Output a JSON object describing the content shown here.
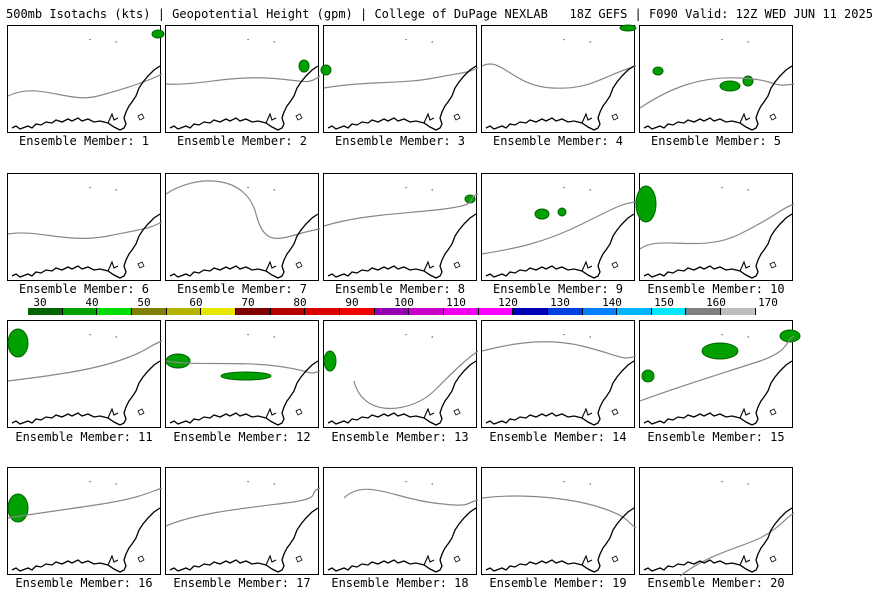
{
  "header": {
    "title": "500mb Isotachs (kts) | Geopotential Height (gpm) | College of DuPage NEXLAB   18Z GEFS | F090 Valid: 12Z WED JUN 11 2025"
  },
  "members": [
    {
      "label": "Ensemble Member: 1"
    },
    {
      "label": "Ensemble Member: 2"
    },
    {
      "label": "Ensemble Member: 3"
    },
    {
      "label": "Ensemble Member: 4"
    },
    {
      "label": "Ensemble Member: 5"
    },
    {
      "label": "Ensemble Member: 6"
    },
    {
      "label": "Ensemble Member: 7"
    },
    {
      "label": "Ensemble Member: 8"
    },
    {
      "label": "Ensemble Member: 9"
    },
    {
      "label": "Ensemble Member: 10"
    },
    {
      "label": "Ensemble Member: 11"
    },
    {
      "label": "Ensemble Member: 12"
    },
    {
      "label": "Ensemble Member: 13"
    },
    {
      "label": "Ensemble Member: 14"
    },
    {
      "label": "Ensemble Member: 15"
    },
    {
      "label": "Ensemble Member: 16"
    },
    {
      "label": "Ensemble Member: 17"
    },
    {
      "label": "Ensemble Member: 18"
    },
    {
      "label": "Ensemble Member: 19"
    },
    {
      "label": "Ensemble Member: 20"
    }
  ],
  "colorbar": {
    "ticks": [
      "30",
      "40",
      "50",
      "60",
      "70",
      "80",
      "90",
      "100",
      "110",
      "120",
      "130",
      "140",
      "150",
      "160",
      "170"
    ],
    "colors": [
      "#006400",
      "#00a000",
      "#00dc00",
      "#7f7f00",
      "#b4b400",
      "#e6e600",
      "#7f0000",
      "#b40000",
      "#dc0000",
      "#f00000",
      "#9600b4",
      "#c800c8",
      "#f000f0",
      "#ff00ff",
      "#0000b4",
      "#0040e0",
      "#0080ff",
      "#00b4ff",
      "#00e6ff",
      "#808080",
      "#bebebe"
    ]
  }
}
